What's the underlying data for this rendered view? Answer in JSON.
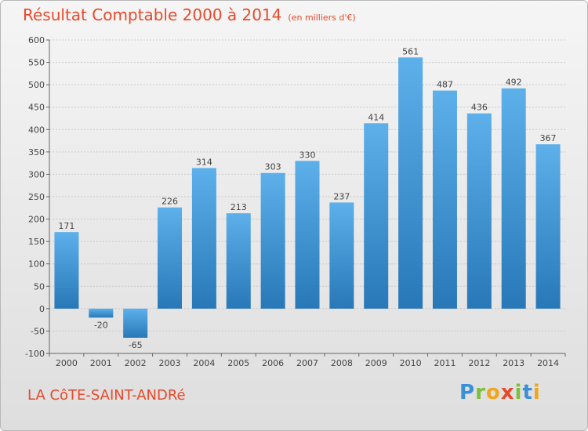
{
  "title": "Résultat Comptable 2000 à 2014",
  "subtitle": "(en milliers d'€)",
  "location": "LA CôTE-SAINT-ANDRé",
  "logo": {
    "letters": [
      "P",
      "r",
      "o",
      "x",
      "i",
      "t",
      "i"
    ],
    "colors": [
      "#3a8fd6",
      "#7cbf3a",
      "#f2a51a",
      "#e8492a",
      "#7cbf3a",
      "#3a8fd6",
      "#f2a51a"
    ]
  },
  "colors": {
    "accent": "#e8492a",
    "bar_light": "#5db0ea",
    "bar_dark": "#2878b8",
    "grid": "#c8c8c8"
  },
  "chart_data": {
    "type": "bar",
    "categories": [
      "2000",
      "2001",
      "2002",
      "2003",
      "2004",
      "2005",
      "2006",
      "2007",
      "2008",
      "2009",
      "2010",
      "2011",
      "2012",
      "2013",
      "2014"
    ],
    "values": [
      171,
      -20,
      -65,
      226,
      314,
      213,
      303,
      330,
      237,
      414,
      561,
      487,
      436,
      492,
      367
    ],
    "ylim": [
      -100,
      600
    ],
    "yticks": [
      -100,
      -50,
      0,
      50,
      100,
      150,
      200,
      250,
      300,
      350,
      400,
      450,
      500,
      550,
      600
    ],
    "grid": true,
    "xlabel": "",
    "ylabel": ""
  }
}
